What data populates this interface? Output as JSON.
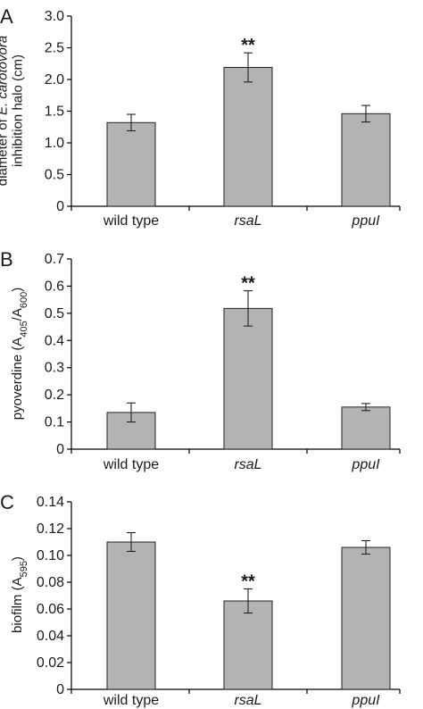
{
  "chart_data": [
    {
      "panel": "A",
      "type": "bar",
      "categories": [
        "wild type",
        "rsaL",
        "ppuI"
      ],
      "category_italic": [
        false,
        true,
        true
      ],
      "values": [
        1.32,
        2.19,
        1.46
      ],
      "errors": [
        0.13,
        0.23,
        0.13
      ],
      "significance": [
        "",
        "**",
        ""
      ],
      "ylabel_lines": [
        [
          {
            "t": "diameter of "
          },
          {
            "t": "E. carotovora",
            "i": true
          }
        ],
        [
          {
            "t": "inhibition halo (cm)"
          }
        ]
      ],
      "ylim": [
        0,
        3.0
      ],
      "yticks": [
        "0",
        "0.5",
        "1.0",
        "1.5",
        "2.0",
        "2.5",
        "3.0"
      ],
      "ytick_values": [
        0,
        0.5,
        1.0,
        1.5,
        2.0,
        2.5,
        3.0
      ],
      "grid": false
    },
    {
      "panel": "B",
      "type": "bar",
      "categories": [
        "wild type",
        "rsaL",
        "ppuI"
      ],
      "category_italic": [
        false,
        true,
        true
      ],
      "values": [
        0.135,
        0.518,
        0.155
      ],
      "errors": [
        0.035,
        0.065,
        0.013
      ],
      "significance": [
        "",
        "**",
        ""
      ],
      "ylabel_lines": [
        [
          {
            "t": "pyoverdine (A"
          },
          {
            "t": "405",
            "sub": true
          },
          {
            "t": "/A"
          },
          {
            "t": "600",
            "sub": true
          },
          {
            "t": ")"
          }
        ]
      ],
      "ylim": [
        0,
        0.7
      ],
      "yticks": [
        "0",
        "0.1",
        "0.2",
        "0.3",
        "0.4",
        "0.5",
        "0.6",
        "0.7"
      ],
      "ytick_values": [
        0,
        0.1,
        0.2,
        0.3,
        0.4,
        0.5,
        0.6,
        0.7
      ],
      "grid": false
    },
    {
      "panel": "C",
      "type": "bar",
      "categories": [
        "wild type",
        "rsaL",
        "ppuI"
      ],
      "category_italic": [
        false,
        true,
        true
      ],
      "values": [
        0.11,
        0.066,
        0.106
      ],
      "errors": [
        0.007,
        0.009,
        0.005
      ],
      "significance": [
        "",
        "**",
        ""
      ],
      "ylabel_lines": [
        [
          {
            "t": "biofilm (A"
          },
          {
            "t": "595",
            "sub": true
          },
          {
            "t": ")"
          }
        ]
      ],
      "ylim": [
        0,
        0.14
      ],
      "yticks": [
        "0",
        "0.02",
        "0.04",
        "0.06",
        "0.08",
        "0.10",
        "0.12",
        "0.14"
      ],
      "ytick_values": [
        0,
        0.02,
        0.04,
        0.06,
        0.08,
        0.1,
        0.12,
        0.14
      ],
      "grid": false
    }
  ],
  "colors": {
    "bar_fill": "#b3b3b3",
    "bar_stroke": "#222222",
    "axis": "#000000"
  }
}
